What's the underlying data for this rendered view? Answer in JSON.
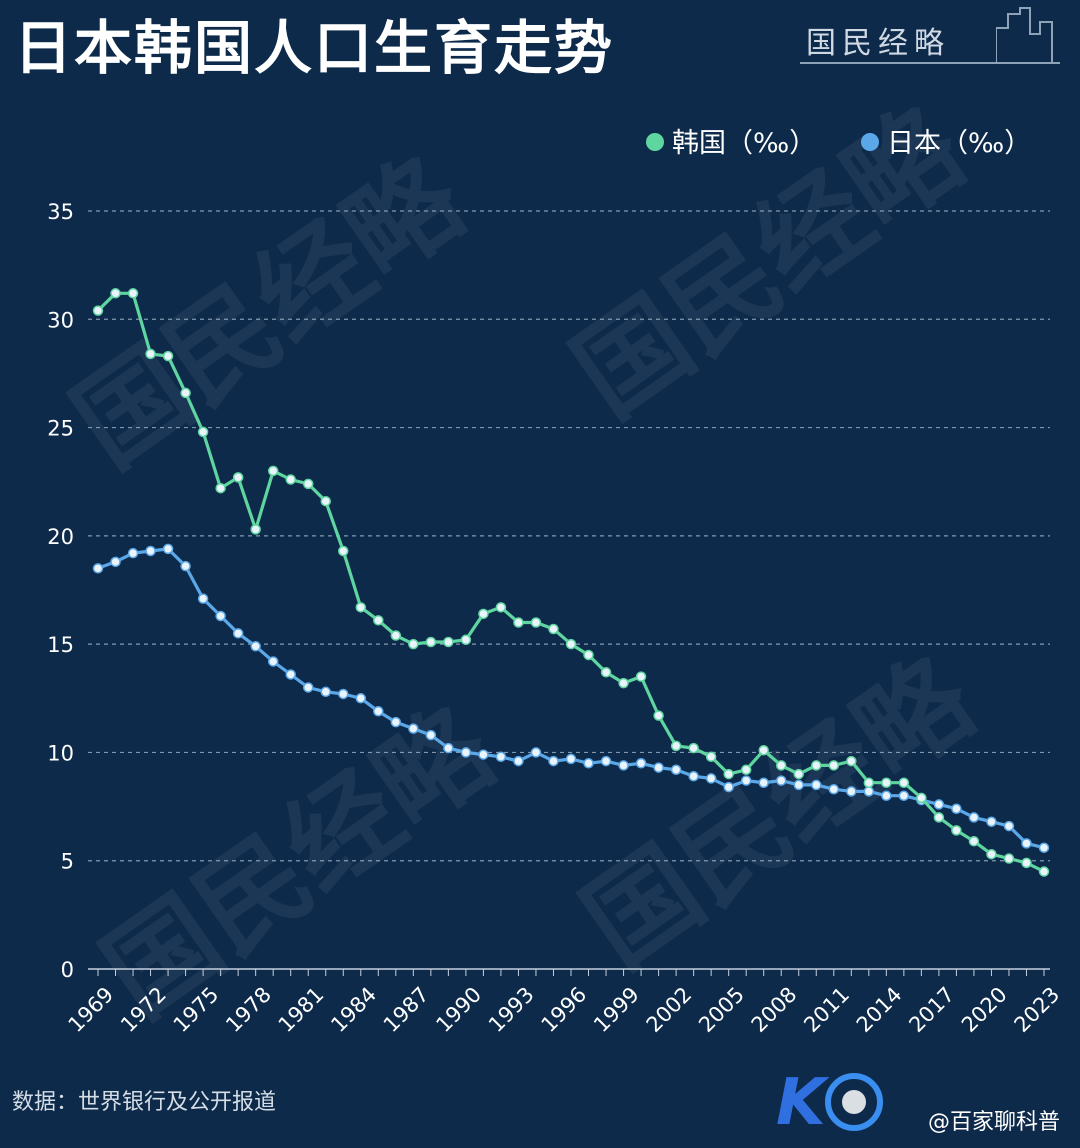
{
  "title": "日本韩国人口生育走势",
  "brand": "国民经略",
  "source": "数据：世界银行及公开报道",
  "corner_text": "@百家聊科普",
  "watermark": "国民经略",
  "colors": {
    "background": "#0d2a4a",
    "korea": "#5fd6a0",
    "japan": "#5ba8e8",
    "grid": "#9fb3c8"
  },
  "chart_data": {
    "type": "line",
    "title": "日本韩国人口生育走势",
    "xlabel": "",
    "ylabel": "",
    "ylim": [
      0,
      35
    ],
    "yticks": [
      0,
      5,
      10,
      15,
      20,
      25,
      30,
      35
    ],
    "x": [
      1969,
      1970,
      1971,
      1972,
      1973,
      1974,
      1975,
      1976,
      1977,
      1978,
      1979,
      1980,
      1981,
      1982,
      1983,
      1984,
      1985,
      1986,
      1987,
      1988,
      1989,
      1990,
      1991,
      1992,
      1993,
      1994,
      1995,
      1996,
      1997,
      1998,
      1999,
      2000,
      2001,
      2002,
      2003,
      2004,
      2005,
      2006,
      2007,
      2008,
      2009,
      2010,
      2011,
      2012,
      2013,
      2014,
      2015,
      2016,
      2017,
      2018,
      2019,
      2020,
      2021,
      2022,
      2023
    ],
    "xticks": [
      "1969",
      "1972",
      "1975",
      "1978",
      "1981",
      "1984",
      "1987",
      "1990",
      "1993",
      "1996",
      "1999",
      "2002",
      "2005",
      "2008",
      "2011",
      "2014",
      "2017",
      "2020",
      "2023"
    ],
    "grid": true,
    "legend_position": "top-right",
    "series": [
      {
        "name": "韩国（‰）",
        "color": "#5fd6a0",
        "values": [
          30.4,
          31.2,
          31.2,
          28.4,
          28.3,
          26.6,
          24.8,
          22.2,
          22.7,
          20.3,
          23.0,
          22.6,
          22.4,
          21.6,
          19.3,
          16.7,
          16.1,
          15.4,
          15.0,
          15.1,
          15.1,
          15.2,
          16.4,
          16.7,
          16.0,
          16.0,
          15.7,
          15.0,
          14.5,
          13.7,
          13.2,
          13.5,
          11.7,
          10.3,
          10.2,
          9.8,
          9.0,
          9.2,
          10.1,
          9.4,
          9.0,
          9.4,
          9.4,
          9.6,
          8.6,
          8.6,
          8.6,
          7.9,
          7.0,
          6.4,
          5.9,
          5.3,
          5.1,
          4.9,
          4.5
        ]
      },
      {
        "name": "日本（‰）",
        "color": "#5ba8e8",
        "values": [
          18.5,
          18.8,
          19.2,
          19.3,
          19.4,
          18.6,
          17.1,
          16.3,
          15.5,
          14.9,
          14.2,
          13.6,
          13.0,
          12.8,
          12.7,
          12.5,
          11.9,
          11.4,
          11.1,
          10.8,
          10.2,
          10.0,
          9.9,
          9.8,
          9.6,
          10.0,
          9.6,
          9.7,
          9.5,
          9.6,
          9.4,
          9.5,
          9.3,
          9.2,
          8.9,
          8.8,
          8.4,
          8.7,
          8.6,
          8.7,
          8.5,
          8.5,
          8.3,
          8.2,
          8.2,
          8.0,
          8.0,
          7.8,
          7.6,
          7.4,
          7.0,
          6.8,
          6.6,
          5.8,
          5.6
        ]
      }
    ]
  }
}
